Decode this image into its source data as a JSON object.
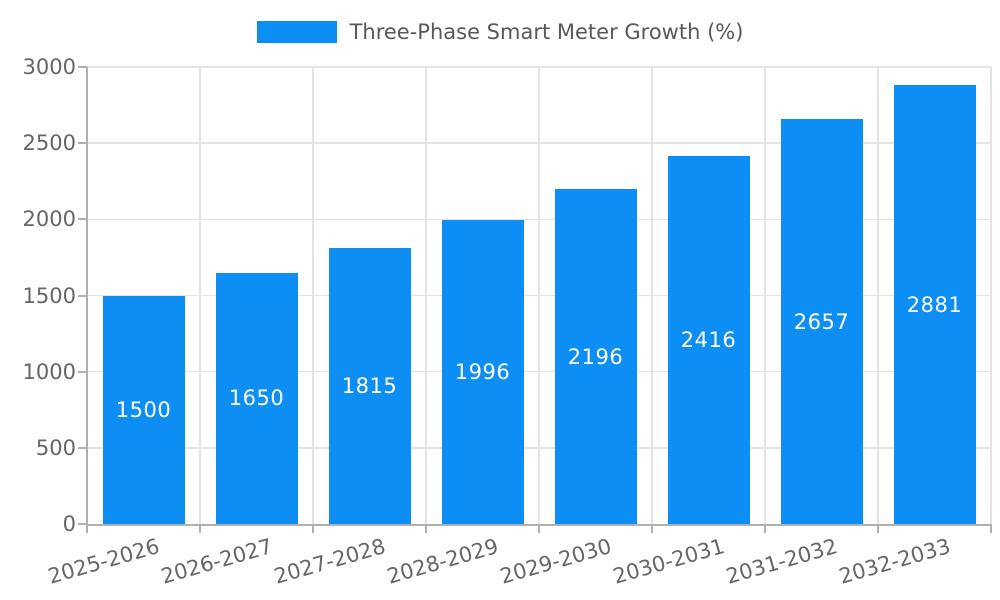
{
  "chart_data": {
    "type": "bar",
    "title": "Three-Phase Smart Meter Growth (%)",
    "legend_entries": [
      "Three-Phase Smart Meter Growth (%)"
    ],
    "legend_position": "top-center",
    "categories": [
      "2025-2026",
      "2026-2027",
      "2027-2028",
      "2028-2029",
      "2029-2030",
      "2030-2031",
      "2031-2032",
      "2032-2033"
    ],
    "values": [
      1500,
      1650,
      1815,
      1996,
      2196,
      2416,
      2657,
      2881
    ],
    "value_labels_shown": true,
    "xlabel": "",
    "ylabel": "",
    "ylim": [
      0,
      3000
    ],
    "yticks": [
      0,
      500,
      1000,
      1500,
      2000,
      2500,
      3000
    ],
    "grid": true,
    "x_tick_rotation_deg": -16,
    "colors": {
      "bar": "#0d8ef5",
      "value_label": "#ffffff",
      "grid": "#e4e4e4",
      "axis": "#b0b0b0",
      "tick_label": "#666666",
      "legend_text": "#595959",
      "background": "#ffffff"
    }
  }
}
